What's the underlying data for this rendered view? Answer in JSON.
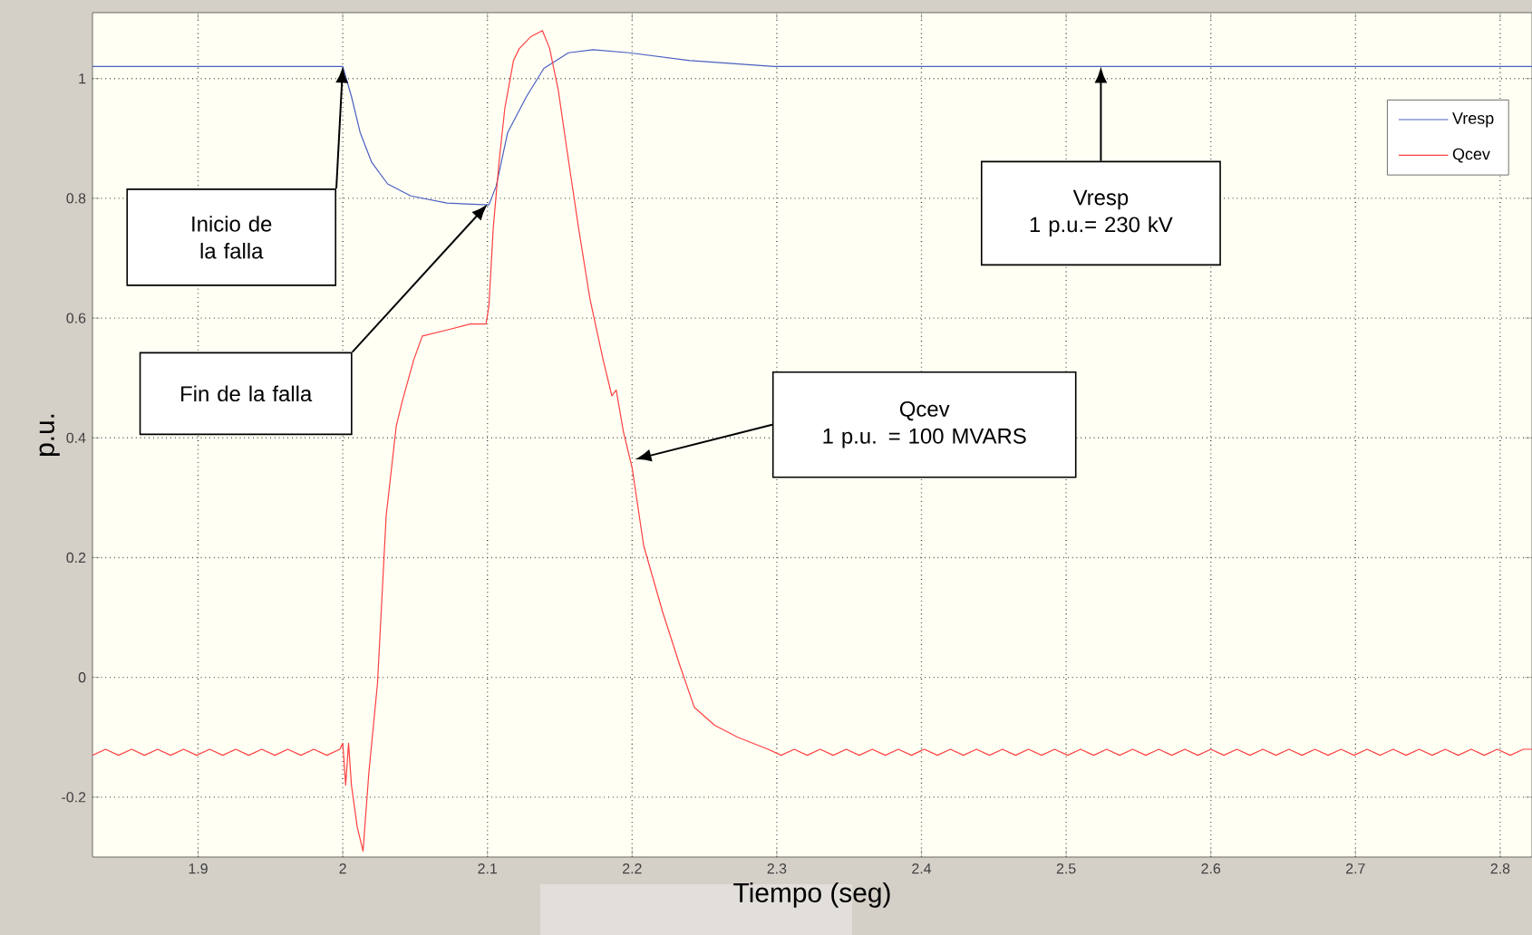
{
  "chart_data": {
    "type": "line",
    "xlabel": "Tiempo (seg)",
    "ylabel": "p.u.",
    "xlim": [
      1.827,
      2.822
    ],
    "ylim": [
      -0.3,
      1.11
    ],
    "xticks": [
      1.9,
      2,
      2.1,
      2.2,
      2.3,
      2.4,
      2.5,
      2.6,
      2.7,
      2.8
    ],
    "yticks": [
      -0.2,
      0,
      0.2,
      0.4,
      0.6,
      0.8,
      1
    ],
    "grid": true,
    "legend": "top right",
    "series": [
      {
        "name": "Vresp",
        "color": "#4a5fc1",
        "x": [
          1.827,
          2.0,
          2.006,
          2.012,
          2.02,
          2.031,
          2.047,
          2.072,
          2.101,
          2.106,
          2.114,
          2.127,
          2.139,
          2.156,
          2.173,
          2.198,
          2.24,
          2.298,
          2.822
        ],
        "values": [
          1.02,
          1.02,
          0.97,
          0.91,
          0.86,
          0.824,
          0.804,
          0.792,
          0.789,
          0.82,
          0.91,
          0.97,
          1.017,
          1.043,
          1.048,
          1.043,
          1.03,
          1.02,
          1.02
        ]
      },
      {
        "name": "Qcev",
        "color": "#ff4040",
        "x": [
          1.827,
          1.836,
          1.845,
          1.854,
          1.863,
          1.872,
          1.881,
          1.89,
          1.899,
          1.908,
          1.917,
          1.926,
          1.935,
          1.944,
          1.953,
          1.962,
          1.971,
          1.98,
          1.989,
          1.998,
          2.0,
          2.002,
          2.004,
          2.006,
          2.01,
          2.014,
          2.018,
          2.024,
          2.03,
          2.037,
          2.041,
          2.049,
          2.055,
          2.072,
          2.088,
          2.099,
          2.101,
          2.104,
          2.108,
          2.112,
          2.118,
          2.122,
          2.13,
          2.138,
          2.143,
          2.149,
          2.155,
          2.163,
          2.171,
          2.18,
          2.186,
          2.189,
          2.194,
          2.2,
          2.208,
          2.221,
          2.233,
          2.243,
          2.257,
          2.273,
          2.294,
          2.303,
          2.312,
          2.321,
          2.33,
          2.339,
          2.348,
          2.357,
          2.366,
          2.375,
          2.384,
          2.393,
          2.402,
          2.411,
          2.42,
          2.429,
          2.438,
          2.447,
          2.456,
          2.465,
          2.474,
          2.483,
          2.492,
          2.501,
          2.51,
          2.519,
          2.528,
          2.537,
          2.546,
          2.555,
          2.564,
          2.573,
          2.582,
          2.591,
          2.6,
          2.609,
          2.618,
          2.627,
          2.636,
          2.645,
          2.654,
          2.663,
          2.672,
          2.681,
          2.69,
          2.699,
          2.708,
          2.717,
          2.726,
          2.735,
          2.744,
          2.753,
          2.762,
          2.771,
          2.78,
          2.789,
          2.798,
          2.807,
          2.816,
          2.822
        ],
        "values": [
          -0.13,
          -0.12,
          -0.13,
          -0.12,
          -0.13,
          -0.12,
          -0.13,
          -0.12,
          -0.13,
          -0.12,
          -0.13,
          -0.12,
          -0.13,
          -0.12,
          -0.13,
          -0.12,
          -0.13,
          -0.12,
          -0.13,
          -0.12,
          -0.11,
          -0.18,
          -0.11,
          -0.18,
          -0.25,
          -0.29,
          -0.16,
          -0.01,
          0.27,
          0.42,
          0.46,
          0.53,
          0.57,
          0.58,
          0.59,
          0.59,
          0.62,
          0.75,
          0.86,
          0.95,
          1.03,
          1.05,
          1.07,
          1.08,
          1.05,
          0.98,
          0.88,
          0.75,
          0.63,
          0.53,
          0.47,
          0.48,
          0.41,
          0.35,
          0.22,
          0.11,
          0.02,
          -0.05,
          -0.08,
          -0.1,
          -0.12,
          -0.13,
          -0.12,
          -0.13,
          -0.12,
          -0.13,
          -0.12,
          -0.13,
          -0.12,
          -0.13,
          -0.12,
          -0.13,
          -0.12,
          -0.13,
          -0.12,
          -0.13,
          -0.12,
          -0.13,
          -0.12,
          -0.13,
          -0.12,
          -0.13,
          -0.12,
          -0.13,
          -0.12,
          -0.13,
          -0.12,
          -0.13,
          -0.12,
          -0.13,
          -0.12,
          -0.13,
          -0.12,
          -0.13,
          -0.12,
          -0.13,
          -0.12,
          -0.13,
          -0.12,
          -0.13,
          -0.12,
          -0.13,
          -0.12,
          -0.13,
          -0.12,
          -0.13,
          -0.12,
          -0.13,
          -0.12,
          -0.13,
          -0.12,
          -0.13,
          -0.12,
          -0.13,
          -0.12,
          -0.13,
          -0.12,
          -0.13,
          -0.12,
          -0.12
        ]
      }
    ],
    "annotations": [
      "Inicio de la falla",
      "Fin de la falla",
      "Vresp",
      "1 p.u.= 230 kV",
      "Qcev",
      "1 p.u. = 100 MVARS"
    ]
  }
}
